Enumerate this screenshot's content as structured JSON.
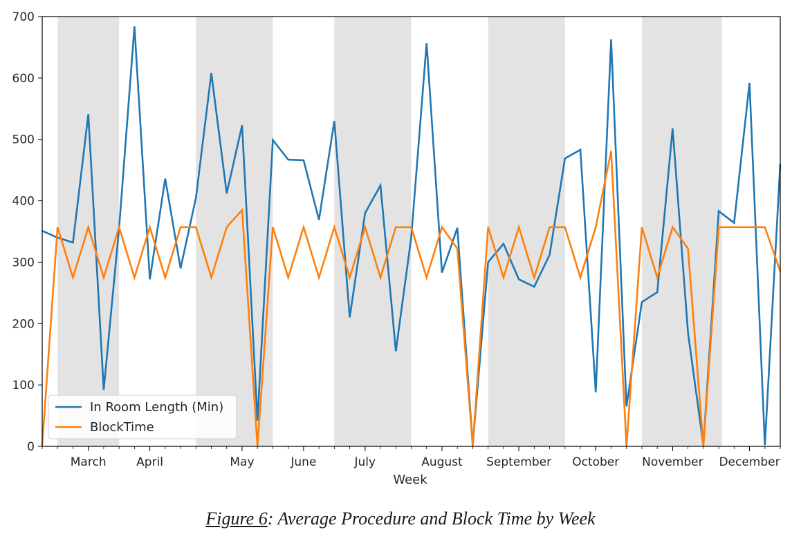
{
  "chart_data": {
    "type": "line",
    "title": "",
    "xlabel": "Week",
    "ylabel": "",
    "ylim": [
      0,
      700
    ],
    "yticks": [
      0,
      100,
      200,
      300,
      400,
      500,
      600,
      700
    ],
    "n_weeks": 49,
    "month_labels": [
      {
        "label": "March",
        "week": 3
      },
      {
        "label": "April",
        "week": 7
      },
      {
        "label": "May",
        "week": 13
      },
      {
        "label": "June",
        "week": 17
      },
      {
        "label": "July",
        "week": 21
      },
      {
        "label": "August",
        "week": 26
      },
      {
        "label": "September",
        "week": 31
      },
      {
        "label": "October",
        "week": 36
      },
      {
        "label": "November",
        "week": 41
      },
      {
        "label": "December",
        "week": 46
      }
    ],
    "shaded_week_spans": [
      [
        1,
        5
      ],
      [
        10,
        15
      ],
      [
        19,
        24
      ],
      [
        29,
        34
      ],
      [
        39,
        44.2
      ]
    ],
    "series": [
      {
        "name": "In Room Length (Min)",
        "color": "#1f77b4",
        "values": [
          351,
          340,
          332,
          541,
          92,
          355,
          684,
          272,
          436,
          290,
          405,
          608,
          412,
          523,
          42,
          499,
          467,
          466,
          369,
          530,
          210,
          380,
          425,
          155,
          340,
          657,
          283,
          356,
          2,
          300,
          330,
          272,
          260,
          312,
          469,
          483,
          88,
          663,
          65,
          235,
          251,
          518,
          185,
          2,
          383,
          364,
          592,
          2,
          460
        ]
      },
      {
        "name": "BlockTime",
        "color": "#ff7f0e",
        "values": [
          2,
          357,
          275,
          357,
          275,
          357,
          275,
          357,
          275,
          357,
          357,
          275,
          357,
          385,
          0,
          357,
          275,
          357,
          275,
          357,
          275,
          357,
          275,
          357,
          357,
          275,
          357,
          322,
          0,
          357,
          275,
          357,
          275,
          357,
          357,
          275,
          357,
          481,
          0,
          357,
          275,
          357,
          322,
          0,
          357,
          357,
          357,
          357,
          285
        ]
      }
    ],
    "legend_position": "lower-left"
  },
  "caption": {
    "figure_ref": "Figure 6",
    "text": ": Average Procedure and Block Time by Week"
  }
}
